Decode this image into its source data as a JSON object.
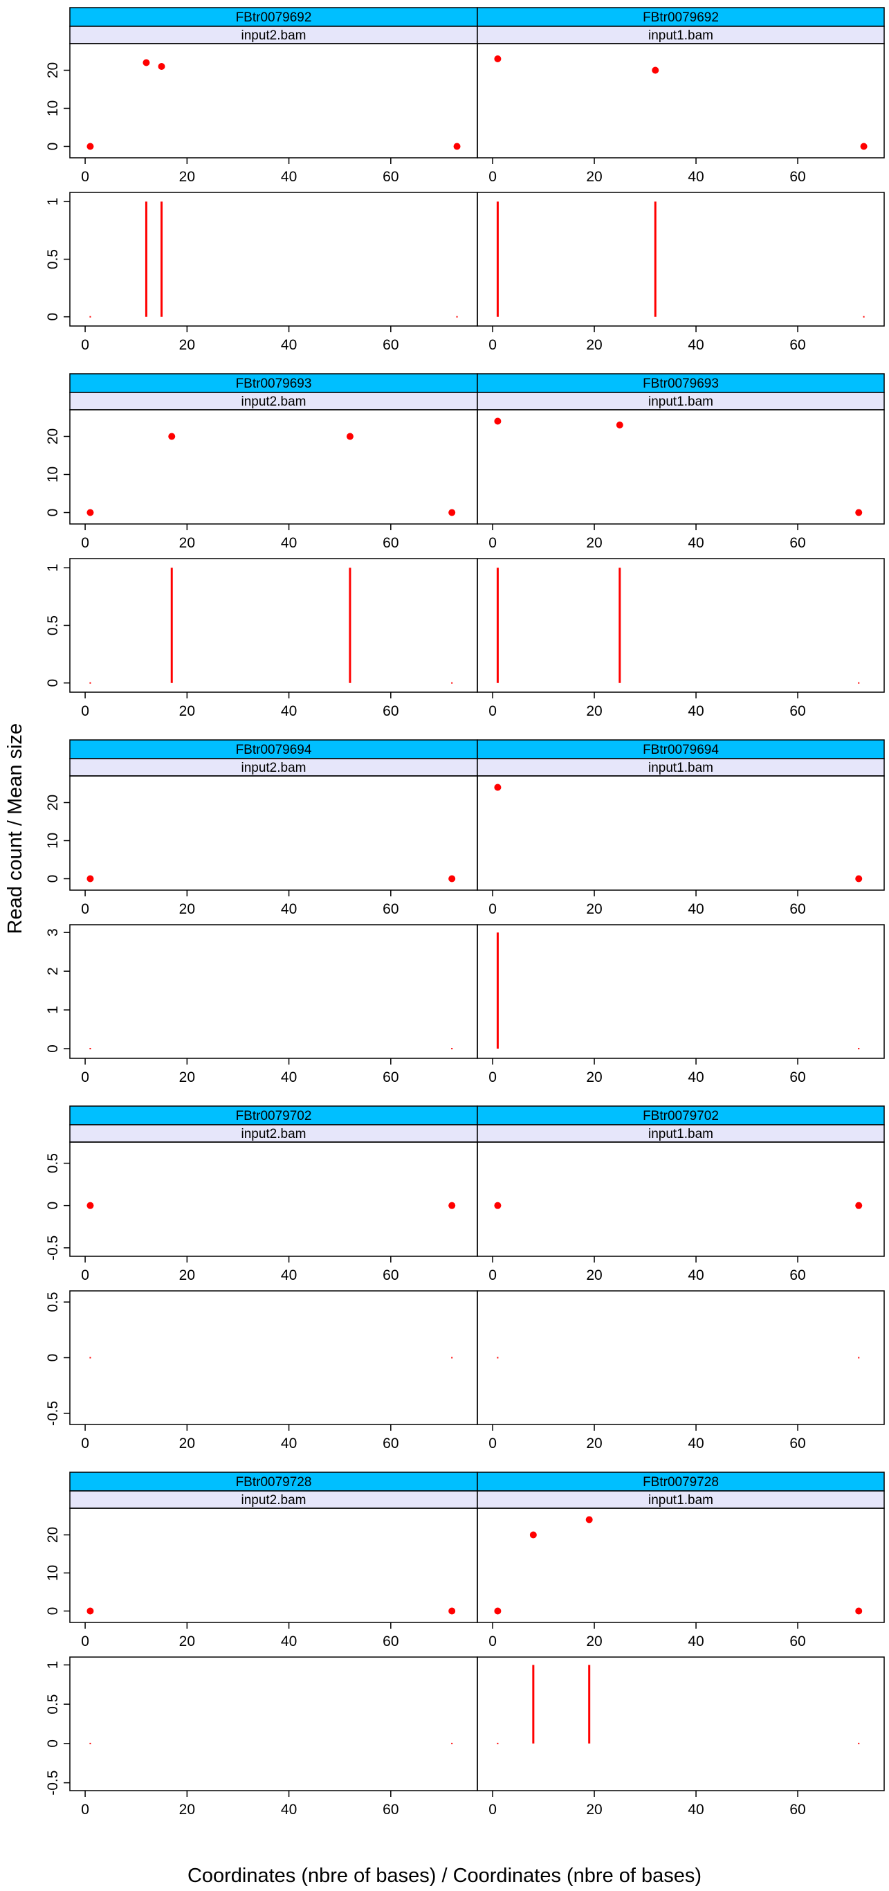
{
  "chart_data": {
    "type": "scatter",
    "ylabel": "Read count / Mean size",
    "xlabel": "Coordinates (nbre of bases) / Coordinates (nbre of bases)",
    "xlim": [
      -3,
      77
    ],
    "xticks": [
      0,
      20,
      40,
      60
    ],
    "colors": {
      "points": "#ff0000",
      "strip_top": "#00bfff",
      "strip_sub": "#e6e6fa",
      "axis": "#000000"
    },
    "transcripts": [
      {
        "id": "FBtr0079692",
        "count_ylim": [
          -3,
          27
        ],
        "count_yticks": [
          0,
          10,
          20
        ],
        "size_ylim": [
          -0.08,
          1.08
        ],
        "size_yticks": [
          0.0,
          0.5,
          1.0
        ],
        "panels": [
          {
            "sample": "input2.bam",
            "counts": [
              {
                "x": 1,
                "y": 0
              },
              {
                "x": 12,
                "y": 22
              },
              {
                "x": 15,
                "y": 21
              },
              {
                "x": 73,
                "y": 0
              }
            ],
            "sizes": [
              {
                "x": 1,
                "y": 0
              },
              {
                "x": 12,
                "y": 1
              },
              {
                "x": 15,
                "y": 1
              },
              {
                "x": 73,
                "y": 0
              }
            ]
          },
          {
            "sample": "input1.bam",
            "counts": [
              {
                "x": 1,
                "y": 23
              },
              {
                "x": 32,
                "y": 20
              },
              {
                "x": 73,
                "y": 0
              }
            ],
            "sizes": [
              {
                "x": 1,
                "y": 1
              },
              {
                "x": 32,
                "y": 1
              },
              {
                "x": 73,
                "y": 0
              }
            ]
          }
        ]
      },
      {
        "id": "FBtr0079693",
        "count_ylim": [
          -3,
          27
        ],
        "count_yticks": [
          0,
          10,
          20
        ],
        "size_ylim": [
          -0.08,
          1.08
        ],
        "size_yticks": [
          0.0,
          0.5,
          1.0
        ],
        "panels": [
          {
            "sample": "input2.bam",
            "counts": [
              {
                "x": 1,
                "y": 0
              },
              {
                "x": 17,
                "y": 20
              },
              {
                "x": 52,
                "y": 20
              },
              {
                "x": 72,
                "y": 0
              }
            ],
            "sizes": [
              {
                "x": 1,
                "y": 0
              },
              {
                "x": 17,
                "y": 1
              },
              {
                "x": 52,
                "y": 1
              },
              {
                "x": 72,
                "y": 0
              }
            ]
          },
          {
            "sample": "input1.bam",
            "counts": [
              {
                "x": 1,
                "y": 24
              },
              {
                "x": 25,
                "y": 23
              },
              {
                "x": 72,
                "y": 0
              }
            ],
            "sizes": [
              {
                "x": 1,
                "y": 1
              },
              {
                "x": 25,
                "y": 1
              },
              {
                "x": 72,
                "y": 0
              }
            ]
          }
        ]
      },
      {
        "id": "FBtr0079694",
        "count_ylim": [
          -3,
          27
        ],
        "count_yticks": [
          0,
          10,
          20
        ],
        "size_ylim": [
          -0.25,
          3.2
        ],
        "size_yticks": [
          0,
          1,
          2,
          3
        ],
        "panels": [
          {
            "sample": "input2.bam",
            "counts": [
              {
                "x": 1,
                "y": 0
              },
              {
                "x": 72,
                "y": 0
              }
            ],
            "sizes": [
              {
                "x": 1,
                "y": 0
              },
              {
                "x": 72,
                "y": 0
              }
            ]
          },
          {
            "sample": "input1.bam",
            "counts": [
              {
                "x": 1,
                "y": 24
              },
              {
                "x": 72,
                "y": 0
              }
            ],
            "sizes": [
              {
                "x": 1,
                "y": 3
              },
              {
                "x": 72,
                "y": 0
              }
            ]
          }
        ]
      },
      {
        "id": "FBtr0079702",
        "count_ylim": [
          -0.6,
          0.75
        ],
        "count_yticks": [
          -0.5,
          0.0,
          0.5
        ],
        "size_ylim": [
          -0.6,
          0.6
        ],
        "size_yticks": [
          -0.5,
          0.0,
          0.5
        ],
        "panels": [
          {
            "sample": "input2.bam",
            "counts": [
              {
                "x": 1,
                "y": 0
              },
              {
                "x": 72,
                "y": 0
              }
            ],
            "sizes": [
              {
                "x": 1,
                "y": 0
              },
              {
                "x": 72,
                "y": 0
              }
            ]
          },
          {
            "sample": "input1.bam",
            "counts": [
              {
                "x": 1,
                "y": 0
              },
              {
                "x": 72,
                "y": 0
              }
            ],
            "sizes": [
              {
                "x": 1,
                "y": 0
              },
              {
                "x": 72,
                "y": 0
              }
            ]
          }
        ]
      },
      {
        "id": "FBtr0079728",
        "count_ylim": [
          -3,
          27
        ],
        "count_yticks": [
          0,
          10,
          20
        ],
        "size_ylim": [
          -0.6,
          1.1
        ],
        "size_yticks": [
          -0.5,
          0.0,
          0.5,
          1.0
        ],
        "panels": [
          {
            "sample": "input2.bam",
            "counts": [
              {
                "x": 1,
                "y": 0
              },
              {
                "x": 72,
                "y": 0
              }
            ],
            "sizes": [
              {
                "x": 1,
                "y": 0
              },
              {
                "x": 72,
                "y": 0
              }
            ]
          },
          {
            "sample": "input1.bam",
            "counts": [
              {
                "x": 1,
                "y": 0
              },
              {
                "x": 8,
                "y": 20
              },
              {
                "x": 19,
                "y": 24
              },
              {
                "x": 72,
                "y": 0
              }
            ],
            "sizes": [
              {
                "x": 1,
                "y": 0
              },
              {
                "x": 8,
                "y": 1
              },
              {
                "x": 19,
                "y": 1
              },
              {
                "x": 72,
                "y": 0
              }
            ]
          }
        ]
      }
    ]
  }
}
